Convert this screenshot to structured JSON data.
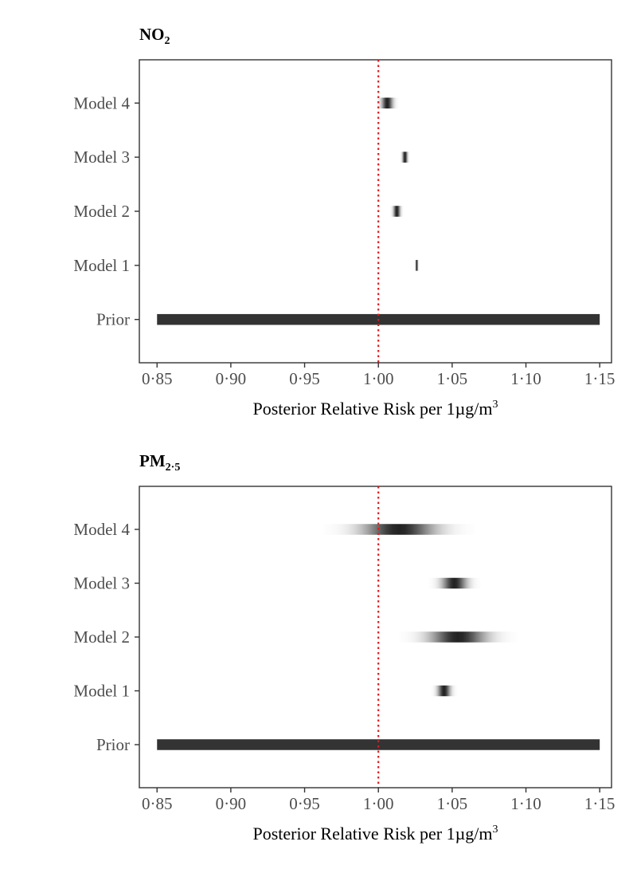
{
  "colors": {
    "reference_line": "#e31a1c",
    "density": "#222222",
    "prior": "#333333",
    "axis_text": "#4d4d4d"
  },
  "chart_data": [
    {
      "type": "density-strip",
      "title_main": "NO",
      "title_sub": "2",
      "xlabel_main": "Posterior Relative Risk per 1µg/m",
      "xlabel_sup": "3",
      "x_tick_labels": [
        "0·85",
        "0·90",
        "0·95",
        "1·00",
        "1·05",
        "1·10",
        "1·15"
      ],
      "x_ticks": [
        0.85,
        0.9,
        0.95,
        1.0,
        1.05,
        1.1,
        1.15
      ],
      "xlim": [
        0.838,
        1.158
      ],
      "reference_x": 1.0,
      "categories": [
        "Prior",
        "Model 1",
        "Model 2",
        "Model 3",
        "Model 4"
      ],
      "series": [
        {
          "name": "Prior",
          "kind": "uniform",
          "min": 0.85,
          "max": 1.15
        },
        {
          "name": "Model 1",
          "kind": "density",
          "mean": 1.026,
          "sd": 0.0005
        },
        {
          "name": "Model 2",
          "kind": "density",
          "mean": 1.0125,
          "sd": 0.0015
        },
        {
          "name": "Model 3",
          "kind": "density",
          "mean": 1.018,
          "sd": 0.0011
        },
        {
          "name": "Model 4",
          "kind": "density",
          "mean": 1.006,
          "sd": 0.0025
        }
      ]
    },
    {
      "type": "density-strip",
      "title_main": "PM",
      "title_sub": "2·5",
      "xlabel_main": "Posterior Relative Risk per 1µg/m",
      "xlabel_sup": "3",
      "x_tick_labels": [
        "0·85",
        "0·90",
        "0·95",
        "1·00",
        "1·05",
        "1·10",
        "1·15"
      ],
      "x_ticks": [
        0.85,
        0.9,
        0.95,
        1.0,
        1.05,
        1.1,
        1.15
      ],
      "xlim": [
        0.838,
        1.158
      ],
      "reference_x": 1.0,
      "categories": [
        "Prior",
        "Model 1",
        "Model 2",
        "Model 3",
        "Model 4"
      ],
      "series": [
        {
          "name": "Prior",
          "kind": "uniform",
          "min": 0.85,
          "max": 1.15
        },
        {
          "name": "Model 1",
          "kind": "density",
          "mean": 1.0445,
          "sd": 0.0028
        },
        {
          "name": "Model 2",
          "kind": "density",
          "mean": 1.054,
          "sd": 0.0125
        },
        {
          "name": "Model 3",
          "kind": "density",
          "mean": 1.0515,
          "sd": 0.0055
        },
        {
          "name": "Model 4",
          "kind": "density",
          "mean": 1.014,
          "sd": 0.016
        }
      ]
    }
  ]
}
